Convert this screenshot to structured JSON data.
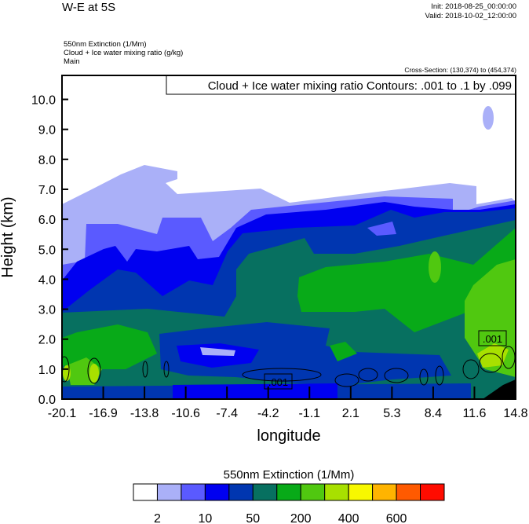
{
  "chart_data": {
    "type": "heatmap",
    "title": "W-E at 5S",
    "init": "Init: 2018-08-25_00:00:00",
    "valid": "Valid: 2018-10-02_12:00:00",
    "fields": [
      "550nm Extinction   (1/Mm)",
      "Cloud + Ice water mixing ratio   (g/kg)",
      "Main"
    ],
    "cross_section": "Cross-Section: (130,374) to (454,374)",
    "contour_info": "Cloud + Ice water mixing ratio Contours: .001 to .1 by .099",
    "contour_labels": [
      ".001",
      ".001"
    ],
    "xlabel": "longitude",
    "ylabel": "Height (km)",
    "xticks": [
      "-20.1",
      "-16.9",
      "-13.8",
      "-10.6",
      "-7.4",
      "-4.2",
      "-1.1",
      "2.1",
      "5.3",
      "8.4",
      "11.6",
      "14.8"
    ],
    "yticks": [
      "0.0",
      "1.0",
      "2.0",
      "3.0",
      "4.0",
      "5.0",
      "6.0",
      "7.0",
      "8.0",
      "9.0",
      "10.0"
    ],
    "xlim": [
      -20.1,
      14.8
    ],
    "ylim": [
      0,
      10.8
    ],
    "colorbar": {
      "title": "550nm Extinction  (1/Mm)",
      "labels": [
        "2",
        "10",
        "50",
        "200",
        "400",
        "600"
      ],
      "colors": [
        "#ffffff",
        "#aab0f8",
        "#5a5aff",
        "#0000f0",
        "#0036b0",
        "#077060",
        "#08aa18",
        "#50c810",
        "#a8e000",
        "#f8f800",
        "#ffb400",
        "#ff5a00",
        "#ff0c00"
      ]
    }
  }
}
